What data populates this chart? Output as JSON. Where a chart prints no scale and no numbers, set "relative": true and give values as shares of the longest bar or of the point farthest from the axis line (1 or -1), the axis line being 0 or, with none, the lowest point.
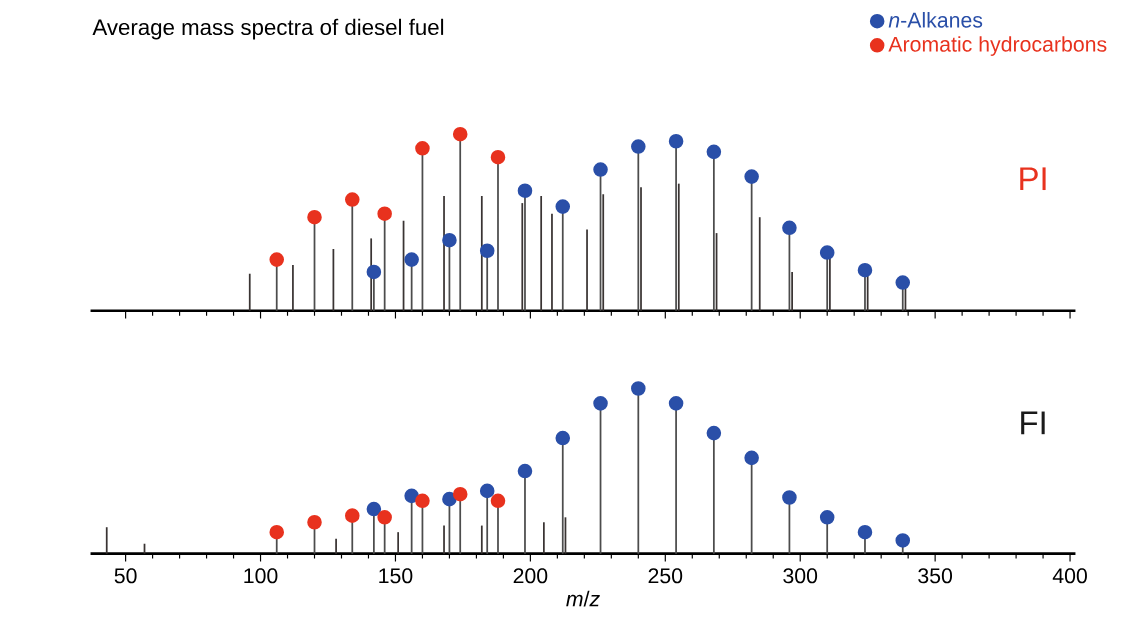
{
  "chart_data": [
    {
      "type": "lollipop",
      "title": "Average mass spectra of diesel fuel",
      "annotations": [
        "PI"
      ],
      "relative": true,
      "xlim": [
        37,
        402
      ],
      "xticks": [
        50,
        100,
        150,
        200,
        250,
        300,
        350,
        400
      ],
      "tick_labels": false,
      "legend": "top right",
      "marker": "circle",
      "series": [
        {
          "type": "bar",
          "color": "#3a3433",
          "x": [
            96,
            112,
            127,
            141,
            153,
            168,
            182,
            197,
            204,
            208,
            221,
            227,
            241,
            255,
            269,
            285,
            297,
            311,
            325,
            339
          ],
          "values": [
            0.21,
            0.26,
            0.35,
            0.41,
            0.51,
            0.65,
            0.65,
            0.61,
            0.65,
            0.55,
            0.46,
            0.66,
            0.7,
            0.72,
            0.44,
            0.53,
            0.22,
            0.31,
            0.2,
            0.13
          ]
        },
        {
          "name": "*n*-Alkanes",
          "color": "#2a4fa8",
          "x": [
            142,
            156,
            170,
            184,
            198,
            212,
            226,
            240,
            254,
            268,
            282,
            296,
            310,
            324,
            338
          ],
          "values": [
            0.22,
            0.29,
            0.4,
            0.34,
            0.68,
            0.59,
            0.8,
            0.93,
            0.96,
            0.9,
            0.76,
            0.47,
            0.33,
            0.23,
            0.16
          ]
        },
        {
          "name": "Aromatic hydrocarbons",
          "color": "#e8321e",
          "x": [
            106,
            120,
            134,
            146,
            160,
            174,
            188
          ],
          "values": [
            0.29,
            0.53,
            0.63,
            0.55,
            0.92,
            1,
            0.87
          ]
        }
      ]
    },
    {
      "type": "lollipop",
      "xlabel": "*m*/*z*",
      "annotations": [
        "FI"
      ],
      "relative": true,
      "xlim": [
        37,
        402
      ],
      "xticks": [
        50,
        100,
        150,
        200,
        250,
        300,
        350,
        400
      ],
      "tick_labels": "x",
      "marker": "circle",
      "series": [
        {
          "type": "bar",
          "color": "#3a3433",
          "x": [
            43,
            57,
            128,
            151,
            168,
            182,
            205,
            213
          ],
          "values": [
            0.16,
            0.06,
            0.09,
            0.13,
            0.17,
            0.17,
            0.19,
            0.22
          ]
        },
        {
          "color": "#2a4fa8",
          "x": [
            142,
            156,
            170,
            184,
            198,
            212,
            226,
            240,
            254,
            268,
            282,
            296,
            310,
            324,
            338
          ],
          "values": [
            0.27,
            0.35,
            0.33,
            0.38,
            0.5,
            0.7,
            0.91,
            1,
            0.91,
            0.73,
            0.58,
            0.34,
            0.22,
            0.13,
            0.08
          ]
        },
        {
          "color": "#e8321e",
          "x": [
            106,
            120,
            134,
            146,
            160,
            174,
            188
          ],
          "values": [
            0.13,
            0.19,
            0.23,
            0.22,
            0.32,
            0.36,
            0.32
          ]
        }
      ]
    }
  ]
}
